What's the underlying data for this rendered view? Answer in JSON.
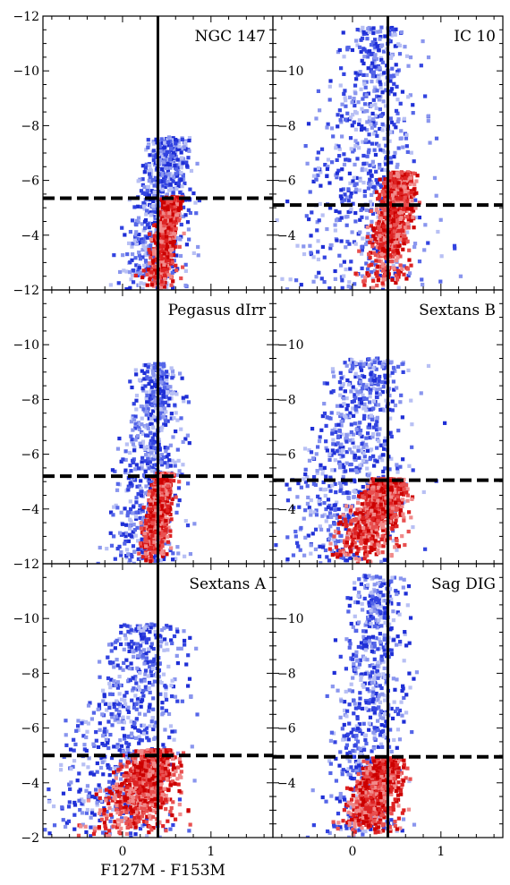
{
  "figure": {
    "xlabel": "F127M - F153M"
  },
  "chart_data": [
    {
      "type": "heatmap",
      "name": "NGC 147",
      "xlim": [
        -0.9,
        1.7
      ],
      "ylim": [
        -2,
        -12
      ],
      "x_ticks": [
        0,
        1
      ],
      "y_ticks": [
        -12,
        -10,
        -8,
        -6,
        -4
      ],
      "trgb_line_y": -5.35,
      "color_cut_x": 0.4,
      "branches": [
        {
          "top_y": -5.4,
          "top_x": 0.57,
          "bottom_x": 0.38,
          "color": "#d40000",
          "spread": 0.04
        },
        {
          "top_y": -7.6,
          "top_x": 0.55,
          "bottom_x": 0.3,
          "color": "#2233dd",
          "spread": 0.1
        }
      ]
    },
    {
      "type": "heatmap",
      "name": "IC 10",
      "xlim": [
        -0.9,
        1.7
      ],
      "ylim": [
        -2,
        -12
      ],
      "x_ticks": [
        0,
        1
      ],
      "y_ticks": [
        -10,
        -8,
        -6,
        -4
      ],
      "trgb_line_y": -5.1,
      "color_cut_x": 0.4,
      "branches": [
        {
          "top_y": -6.3,
          "top_x": 0.55,
          "bottom_x": 0.32,
          "color": "#d40000",
          "spread": 0.08
        },
        {
          "top_y": -11.6,
          "top_x": 0.3,
          "bottom_x": 0.05,
          "color": "#2233dd",
          "spread": 0.22
        }
      ]
    },
    {
      "type": "heatmap",
      "name": "Pegasus dIrr",
      "xlim": [
        -0.9,
        1.7
      ],
      "ylim": [
        -2,
        -12
      ],
      "x_ticks": [
        0,
        1
      ],
      "y_ticks": [
        -12,
        -10,
        -8,
        -6,
        -4
      ],
      "trgb_line_y": -5.2,
      "color_cut_x": 0.4,
      "branches": [
        {
          "top_y": -5.3,
          "top_x": 0.47,
          "bottom_x": 0.33,
          "color": "#d40000",
          "spread": 0.04
        },
        {
          "top_y": -9.3,
          "top_x": 0.4,
          "bottom_x": 0.25,
          "color": "#2233dd",
          "spread": 0.1
        }
      ]
    },
    {
      "type": "heatmap",
      "name": "Sextans B",
      "xlim": [
        -0.9,
        1.7
      ],
      "ylim": [
        -2,
        -12
      ],
      "x_ticks": [
        0,
        1
      ],
      "y_ticks": [
        -10,
        -8,
        -6,
        -4
      ],
      "trgb_line_y": -5.05,
      "color_cut_x": 0.4,
      "branches": [
        {
          "top_y": -5.1,
          "top_x": 0.42,
          "bottom_x": 0.05,
          "color": "#d40000",
          "spread": 0.12
        },
        {
          "top_y": -9.5,
          "top_x": 0.25,
          "bottom_x": -0.25,
          "color": "#2233dd",
          "spread": 0.22
        }
      ]
    },
    {
      "type": "heatmap",
      "name": "Sextans A",
      "xlim": [
        -0.9,
        1.7
      ],
      "ylim": [
        -2,
        -12
      ],
      "x_ticks": [
        0,
        1
      ],
      "y_ticks": [
        -12,
        -10,
        -8,
        -6,
        -4,
        -2
      ],
      "trgb_line_y": -5.0,
      "color_cut_x": 0.4,
      "branches": [
        {
          "top_y": -5.2,
          "top_x": 0.4,
          "bottom_x": 0.0,
          "color": "#d40000",
          "spread": 0.15
        },
        {
          "top_y": -9.8,
          "top_x": 0.3,
          "bottom_x": -0.2,
          "color": "#2233dd",
          "spread": 0.22
        }
      ]
    },
    {
      "type": "heatmap",
      "name": "Sag DIG",
      "xlim": [
        -0.9,
        1.7
      ],
      "ylim": [
        -2,
        -12
      ],
      "x_ticks": [
        0,
        1
      ],
      "y_ticks": [
        -10,
        -8,
        -6,
        -4
      ],
      "trgb_line_y": -4.95,
      "color_cut_x": 0.4,
      "branches": [
        {
          "top_y": -4.9,
          "top_x": 0.38,
          "bottom_x": 0.15,
          "color": "#d40000",
          "spread": 0.1
        },
        {
          "top_y": -11.6,
          "top_x": 0.3,
          "bottom_x": 0.1,
          "color": "#3344dd",
          "spread": 0.12
        }
      ]
    }
  ]
}
